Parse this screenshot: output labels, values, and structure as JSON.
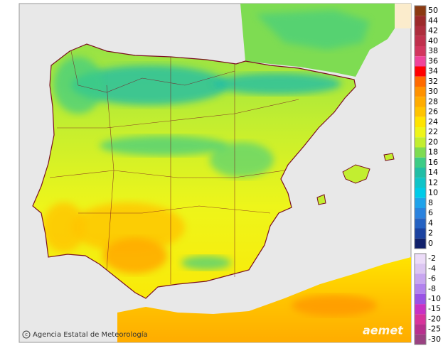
{
  "legend": {
    "groups": [
      [
        {
          "label": "50",
          "color": "#8b3a12"
        },
        {
          "label": "44",
          "color": "#9c2a2a"
        },
        {
          "label": "42",
          "color": "#ad2d3c"
        },
        {
          "label": "40",
          "color": "#c0304c"
        },
        {
          "label": "38",
          "color": "#d2365e"
        },
        {
          "label": "36",
          "color": "#f0449a"
        },
        {
          "label": "34",
          "color": "#ff0000"
        },
        {
          "label": "32",
          "color": "#ff6a00"
        },
        {
          "label": "30",
          "color": "#ff9200"
        },
        {
          "label": "28",
          "color": "#ffac00"
        },
        {
          "label": "26",
          "color": "#ffc400"
        },
        {
          "label": "24",
          "color": "#ffe400"
        },
        {
          "label": "22",
          "color": "#eef51a"
        },
        {
          "label": "20",
          "color": "#c2ee30"
        },
        {
          "label": "18",
          "color": "#7edc52"
        },
        {
          "label": "16",
          "color": "#3ecc86"
        },
        {
          "label": "14",
          "color": "#22bea6"
        },
        {
          "label": "12",
          "color": "#10c4c8"
        },
        {
          "label": "10",
          "color": "#00cbe8"
        },
        {
          "label": "8",
          "color": "#1fa2ea"
        },
        {
          "label": "6",
          "color": "#2a82de"
        },
        {
          "label": "4",
          "color": "#2562c2"
        },
        {
          "label": "2",
          "color": "#1b42a0"
        },
        {
          "label": "0",
          "color": "#10206a"
        }
      ],
      [
        {
          "label": "-2",
          "color": "#ecdcf8"
        },
        {
          "label": "-4",
          "color": "#dcc6f2"
        },
        {
          "label": "-6",
          "color": "#c8a6f0"
        },
        {
          "label": "-8",
          "color": "#b282ee"
        },
        {
          "label": "-10",
          "color": "#9a52e6"
        },
        {
          "label": "-15",
          "color": "#c832c4"
        },
        {
          "label": "-20",
          "color": "#d8349c"
        },
        {
          "label": "-25",
          "color": "#b8308e"
        },
        {
          "label": "-30",
          "color": "#9a4282"
        }
      ]
    ]
  },
  "credit": "Agencia Estatal de Meteorología",
  "logo": "aemet"
}
